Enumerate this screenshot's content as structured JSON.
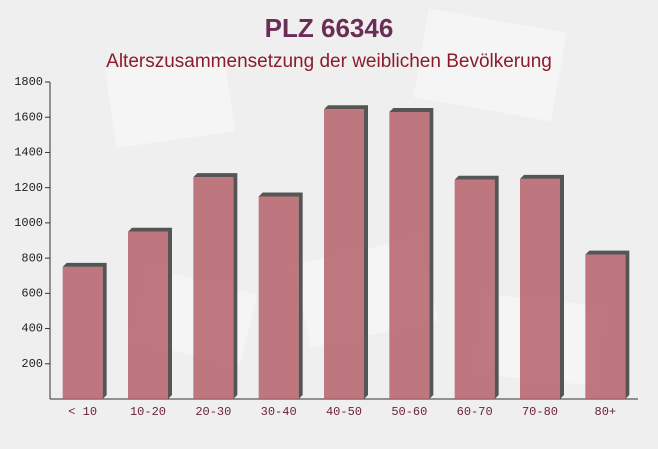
{
  "chart_data": {
    "type": "bar",
    "title": "PLZ 66346",
    "subtitle": "Alterszusammensetzung der weiblichen Bevölkerung",
    "categories": [
      "< 10",
      "10-20",
      "20-30",
      "30-40",
      "40-50",
      "50-60",
      "60-70",
      "70-80",
      "80+"
    ],
    "values": [
      750,
      950,
      1260,
      1150,
      1645,
      1630,
      1245,
      1250,
      820
    ],
    "color": "#b5606b",
    "ylim": [
      0,
      1800
    ],
    "yticks": [
      200,
      400,
      600,
      800,
      1000,
      1200,
      1400,
      1600,
      1800
    ]
  }
}
